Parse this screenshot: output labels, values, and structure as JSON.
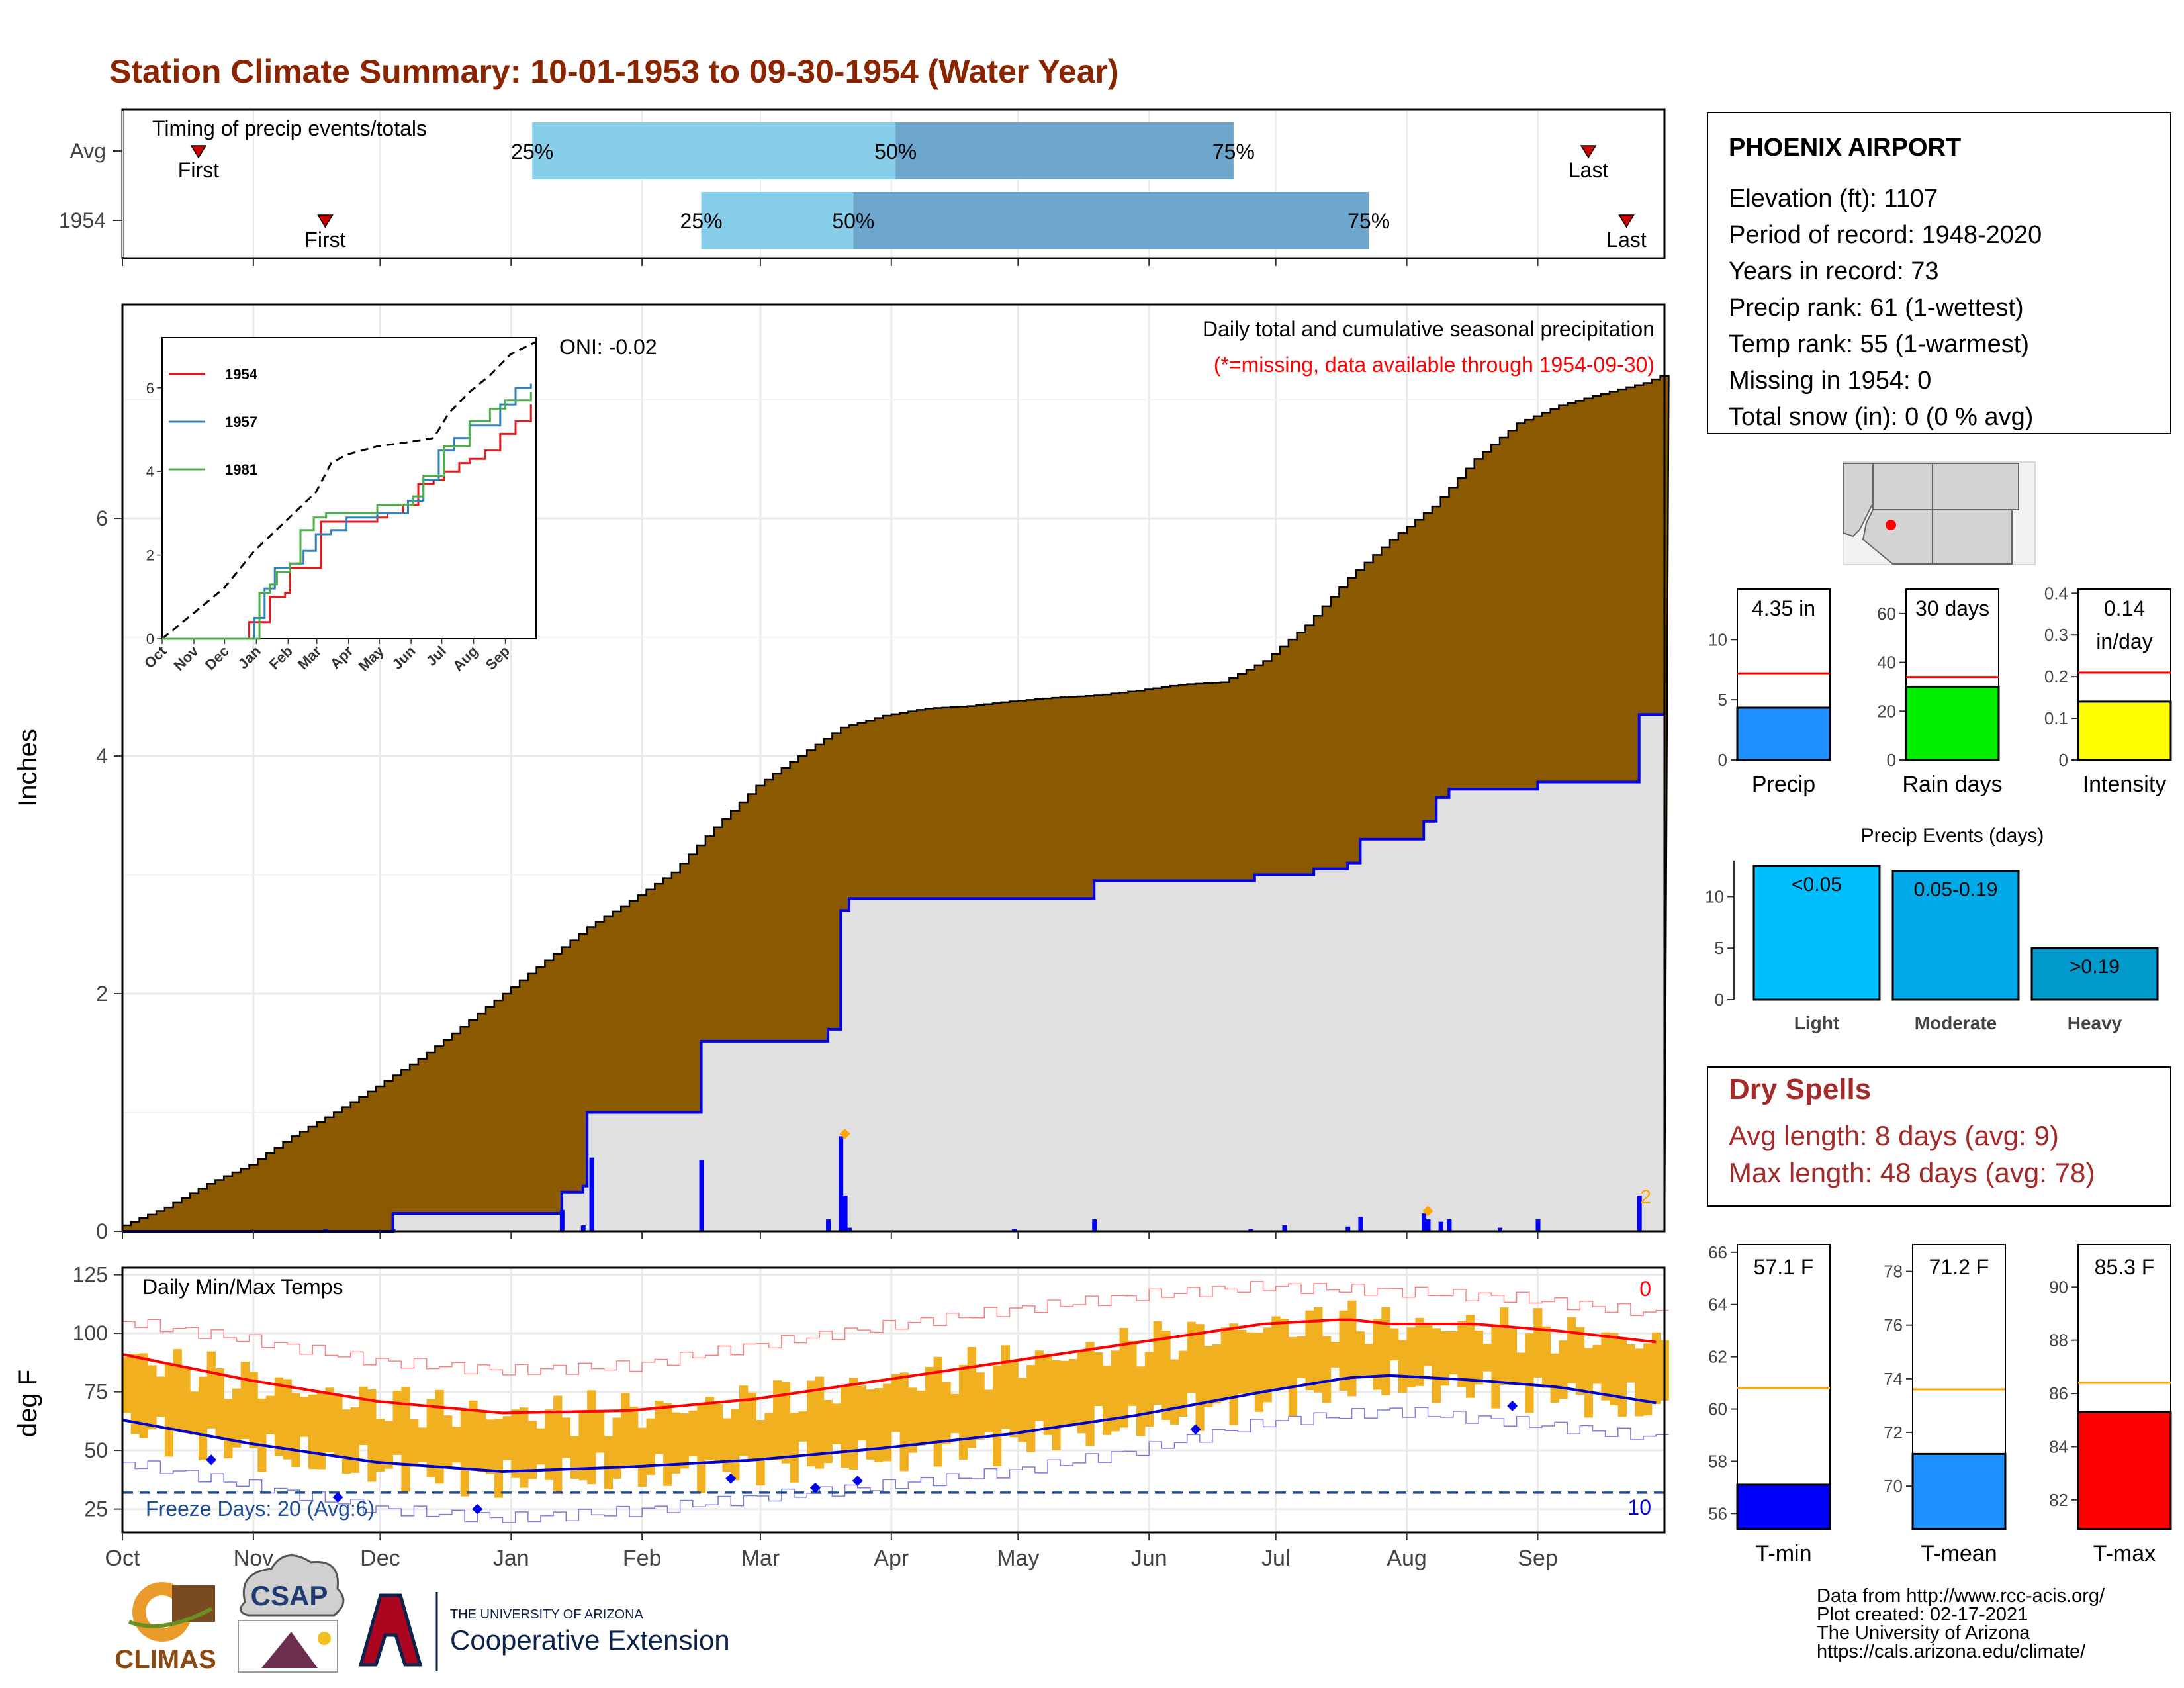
{
  "title": "Station Climate Summary: 10-01-1953 to 09-30-1954 (Water Year)",
  "colors": {
    "title": "#8B2500",
    "precip_fill": "#8B5A00",
    "avg_fill": "#E0E0E0",
    "avg_line": "#0000EE",
    "timing_light": "#87CEEB",
    "timing_dark": "#6CA6CD",
    "tmax": "#FF0000",
    "tmin": "#0000CD",
    "temp_bar": "#F0B020",
    "marker": "#FFA500",
    "dryspell": "#A52A2A"
  },
  "months": [
    "Oct",
    "Nov",
    "Dec",
    "Jan",
    "Feb",
    "Mar",
    "Apr",
    "May",
    "Jun",
    "Jul",
    "Aug",
    "Sep"
  ],
  "timing": {
    "label": "Timing of precip events/totals",
    "rows": [
      {
        "name": "Avg",
        "first_day": 18,
        "q25_day": 97,
        "q50_day": 183,
        "q75_day": 263,
        "last_day": 347,
        "first_label": "First",
        "last_label": "Last",
        "p25": "25%",
        "p50": "50%",
        "p75": "75%"
      },
      {
        "name": "1954",
        "first_day": 48,
        "q25_day": 137,
        "q50_day": 173,
        "q75_day": 295,
        "last_day": 356,
        "first_label": "First",
        "last_label": "Last",
        "p25": "25%",
        "p50": "50%",
        "p75": "75%"
      }
    ]
  },
  "precip": {
    "ylabel": "Inches",
    "yticks": [
      0,
      2,
      4,
      6
    ],
    "ylim": [
      0,
      7.8
    ],
    "oni": "ONI: -0.02",
    "note_title": "Daily total and cumulative seasonal precipitation",
    "note_missing": "(*=missing, data available through 1954-09-30)",
    "corner_value": "2",
    "avg_cumulative": {
      "days": [
        0,
        10,
        20,
        30,
        40,
        50,
        60,
        70,
        80,
        90,
        100,
        110,
        120,
        130,
        140,
        150,
        160,
        170,
        180,
        190,
        200,
        210,
        220,
        230,
        240,
        250,
        260,
        270,
        280,
        290,
        300,
        310,
        320,
        330,
        340,
        350,
        360,
        364
      ],
      "values": [
        0.05,
        0.2,
        0.4,
        0.56,
        0.8,
        1.0,
        1.22,
        1.45,
        1.72,
        2.0,
        2.28,
        2.56,
        2.78,
        3.02,
        3.4,
        3.75,
        4.0,
        4.24,
        4.34,
        4.4,
        4.42,
        4.46,
        4.49,
        4.51,
        4.55,
        4.6,
        4.62,
        4.8,
        5.1,
        5.5,
        5.82,
        6.1,
        6.5,
        6.8,
        6.95,
        7.05,
        7.14,
        7.2
      ]
    },
    "cumulative_1954": [
      [
        0,
        0
      ],
      [
        47,
        0
      ],
      [
        64,
        0.15
      ],
      [
        103,
        0.15
      ],
      [
        104,
        0.33
      ],
      [
        109,
        0.38
      ],
      [
        110,
        1.0
      ],
      [
        136,
        1.0
      ],
      [
        137,
        1.6
      ],
      [
        166,
        1.6
      ],
      [
        167,
        1.7
      ],
      [
        170,
        2.7
      ],
      [
        172,
        2.8
      ],
      [
        229,
        2.8
      ],
      [
        230,
        2.95
      ],
      [
        267,
        2.95
      ],
      [
        268,
        3.0
      ],
      [
        282,
        3.05
      ],
      [
        290,
        3.1
      ],
      [
        293,
        3.3
      ],
      [
        307,
        3.3
      ],
      [
        308,
        3.45
      ],
      [
        311,
        3.65
      ],
      [
        314,
        3.72
      ],
      [
        334,
        3.72
      ],
      [
        335,
        3.78
      ],
      [
        358,
        3.78
      ],
      [
        359,
        4.35
      ],
      [
        364,
        4.35
      ]
    ],
    "daily_1954": [
      [
        48,
        0.02
      ],
      [
        64,
        0.02
      ],
      [
        104,
        0.18
      ],
      [
        109,
        0.05
      ],
      [
        111,
        0.62
      ],
      [
        137,
        0.6
      ],
      [
        167,
        0.1
      ],
      [
        170,
        0.8
      ],
      [
        171,
        0.3
      ],
      [
        172,
        0.03
      ],
      [
        211,
        0.02
      ],
      [
        230,
        0.1
      ],
      [
        267,
        0.02
      ],
      [
        275,
        0.05
      ],
      [
        290,
        0.04
      ],
      [
        293,
        0.12
      ],
      [
        308,
        0.15
      ],
      [
        309,
        0.1
      ],
      [
        312,
        0.08
      ],
      [
        314,
        0.1
      ],
      [
        326,
        0.03
      ],
      [
        335,
        0.1
      ],
      [
        359,
        0.3
      ]
    ],
    "missing_markers": [
      [
        171,
        0.82
      ],
      [
        309,
        0.17
      ]
    ]
  },
  "inset": {
    "yticks": [
      0,
      2,
      4,
      6
    ],
    "ylim": [
      0,
      7.2
    ],
    "xlabels": [
      "Oct",
      "Nov",
      "Dec",
      "Jan",
      "Feb",
      "Mar",
      "Apr",
      "May",
      "Jun",
      "Jul",
      "Aug",
      "Sep"
    ],
    "series": [
      {
        "name": "1954",
        "color": "#E31A1C",
        "points": [
          [
            0,
            0
          ],
          [
            80,
            0
          ],
          [
            85,
            0.4
          ],
          [
            100,
            0.4
          ],
          [
            105,
            1.0
          ],
          [
            120,
            1.1
          ],
          [
            125,
            1.7
          ],
          [
            150,
            1.7
          ],
          [
            155,
            2.8
          ],
          [
            210,
            2.9
          ],
          [
            220,
            3.0
          ],
          [
            235,
            3.2
          ],
          [
            250,
            3.7
          ],
          [
            265,
            3.8
          ],
          [
            275,
            4.0
          ],
          [
            290,
            4.2
          ],
          [
            300,
            4.3
          ],
          [
            315,
            4.5
          ],
          [
            330,
            4.9
          ],
          [
            345,
            5.2
          ],
          [
            360,
            5.6
          ]
        ]
      },
      {
        "name": "1957",
        "color": "#3182BD",
        "points": [
          [
            0,
            0
          ],
          [
            85,
            0
          ],
          [
            90,
            0.5
          ],
          [
            100,
            1.2
          ],
          [
            110,
            1.7
          ],
          [
            125,
            1.8
          ],
          [
            138,
            2.1
          ],
          [
            150,
            2.5
          ],
          [
            165,
            2.6
          ],
          [
            180,
            2.9
          ],
          [
            210,
            3.0
          ],
          [
            240,
            3.3
          ],
          [
            255,
            3.8
          ],
          [
            270,
            4.5
          ],
          [
            285,
            4.8
          ],
          [
            300,
            5.1
          ],
          [
            330,
            5.6
          ],
          [
            345,
            6.0
          ],
          [
            360,
            6.1
          ]
        ]
      },
      {
        "name": "1981",
        "color": "#4DAF4A",
        "points": [
          [
            0,
            0
          ],
          [
            85,
            0
          ],
          [
            95,
            1.1
          ],
          [
            105,
            1.3
          ],
          [
            112,
            1.6
          ],
          [
            125,
            1.8
          ],
          [
            135,
            2.6
          ],
          [
            148,
            2.9
          ],
          [
            160,
            3.0
          ],
          [
            210,
            3.2
          ],
          [
            245,
            3.4
          ],
          [
            255,
            3.9
          ],
          [
            275,
            4.6
          ],
          [
            300,
            5.2
          ],
          [
            320,
            5.5
          ],
          [
            335,
            5.7
          ],
          [
            360,
            5.9
          ]
        ]
      }
    ],
    "normal": {
      "points": [
        [
          0,
          0
        ],
        [
          30,
          0.6
        ],
        [
          60,
          1.2
        ],
        [
          90,
          2.1
        ],
        [
          120,
          2.8
        ],
        [
          150,
          3.5
        ],
        [
          165,
          4.2
        ],
        [
          180,
          4.4
        ],
        [
          210,
          4.6
        ],
        [
          240,
          4.7
        ],
        [
          265,
          4.8
        ],
        [
          280,
          5.4
        ],
        [
          300,
          5.9
        ],
        [
          320,
          6.3
        ],
        [
          340,
          6.8
        ],
        [
          365,
          7.1
        ]
      ]
    }
  },
  "temps": {
    "ylabel": "deg F",
    "label": "Daily Min/Max Temps",
    "yticks": [
      25,
      50,
      75,
      100,
      125
    ],
    "ylim": [
      15,
      128
    ],
    "freeze_line": 32,
    "freeze_label": "Freeze Days: 20 (Avg:6)",
    "top_right": "0",
    "bottom_right": "10",
    "avg_max": [
      [
        0,
        91
      ],
      [
        30,
        80
      ],
      [
        60,
        71
      ],
      [
        90,
        66
      ],
      [
        120,
        67
      ],
      [
        150,
        72
      ],
      [
        180,
        80
      ],
      [
        210,
        88
      ],
      [
        240,
        96
      ],
      [
        270,
        104
      ],
      [
        290,
        106
      ],
      [
        300,
        104
      ],
      [
        320,
        104
      ],
      [
        340,
        101
      ],
      [
        364,
        96
      ]
    ],
    "avg_min": [
      [
        0,
        63
      ],
      [
        30,
        53
      ],
      [
        60,
        45
      ],
      [
        90,
        41
      ],
      [
        120,
        43
      ],
      [
        150,
        46
      ],
      [
        180,
        51
      ],
      [
        210,
        57
      ],
      [
        240,
        65
      ],
      [
        270,
        75
      ],
      [
        290,
        81
      ],
      [
        300,
        82
      ],
      [
        320,
        80
      ],
      [
        340,
        77
      ],
      [
        364,
        70
      ]
    ],
    "rec_max": [
      [
        0,
        105
      ],
      [
        30,
        97
      ],
      [
        60,
        88
      ],
      [
        90,
        84
      ],
      [
        120,
        86
      ],
      [
        150,
        95
      ],
      [
        180,
        103
      ],
      [
        210,
        110
      ],
      [
        240,
        116
      ],
      [
        270,
        120
      ],
      [
        300,
        118
      ],
      [
        330,
        115
      ],
      [
        364,
        108
      ]
    ],
    "rec_min": [
      [
        0,
        45
      ],
      [
        30,
        35
      ],
      [
        60,
        25
      ],
      [
        90,
        21
      ],
      [
        120,
        24
      ],
      [
        150,
        30
      ],
      [
        180,
        35
      ],
      [
        210,
        41
      ],
      [
        240,
        50
      ],
      [
        270,
        62
      ],
      [
        300,
        67
      ],
      [
        330,
        62
      ],
      [
        364,
        55
      ]
    ],
    "record_markers": [
      [
        21,
        46
      ],
      [
        51,
        30
      ],
      [
        84,
        25
      ],
      [
        144,
        38
      ],
      [
        164,
        34
      ],
      [
        174,
        37
      ],
      [
        254,
        59
      ],
      [
        329,
        69
      ]
    ]
  },
  "station": {
    "name": "PHOENIX AIRPORT",
    "lines": [
      "Elevation (ft): 1107",
      "Period of record: 1948-2020",
      "Years in record: 73",
      "Precip rank: 61 (1-wettest)",
      "Temp rank: 55 (1-warmest)",
      "Missing in 1954: 0",
      "Total snow (in): 0 (0 % avg)"
    ]
  },
  "mini_bars": [
    {
      "name": "Precip",
      "value": 4.35,
      "avg": 7.2,
      "ylim": [
        0,
        14.2
      ],
      "yticks": [
        0,
        5,
        10
      ],
      "label": "4.35 in",
      "color": "#1E90FF"
    },
    {
      "name": "Rain days",
      "value": 30,
      "avg": 34,
      "ylim": [
        0,
        70
      ],
      "yticks": [
        0,
        20,
        40,
        60
      ],
      "label": "30 days",
      "color": "#00EE00"
    },
    {
      "name": "Intensity",
      "value": 0.14,
      "avg": 0.21,
      "ylim": [
        0,
        0.41
      ],
      "yticks": [
        0.0,
        0.1,
        0.2,
        0.3,
        0.4
      ],
      "label": "0.14",
      "label2": "in/day",
      "color": "#FFFF00"
    }
  ],
  "precip_events": {
    "title": "Precip Events (days)",
    "yticks": [
      0,
      5,
      10
    ],
    "ylim": [
      0,
      13.5
    ],
    "categories": [
      "Light",
      "Moderate",
      "Heavy"
    ],
    "values": [
      13,
      12.5,
      5
    ],
    "labels": [
      "<0.05",
      "0.05-0.19",
      ">0.19"
    ],
    "colors": [
      "#00BFFF",
      "#00AAE8",
      "#0099CC"
    ]
  },
  "dry_spells": {
    "title": "Dry Spells",
    "avg_line": "Avg length: 8 days (avg: 9)",
    "max_line": "Max length: 48 days (avg: 78)"
  },
  "temp_bars": [
    {
      "name": "T-min",
      "value": 57.1,
      "avg": 60.8,
      "ylim": [
        55.4,
        66.3
      ],
      "yticks": [
        56,
        58,
        60,
        62,
        64,
        66
      ],
      "label": "57.1 F",
      "color": "#0000FF"
    },
    {
      "name": "T-mean",
      "value": 71.2,
      "avg": 73.6,
      "ylim": [
        68.4,
        79.0
      ],
      "yticks": [
        70,
        72,
        74,
        76,
        78
      ],
      "label": "71.2 F",
      "color": "#1E90FF"
    },
    {
      "name": "T-max",
      "value": 85.3,
      "avg": 86.4,
      "ylim": [
        80.9,
        91.6
      ],
      "yticks": [
        82,
        84,
        86,
        88,
        90
      ],
      "label": "85.3 F",
      "color": "#FF0000"
    }
  ],
  "footer": {
    "credits": [
      "Data from http://www.rcc-acis.org/",
      "Plot created: 02-17-2021",
      "The University of Arizona",
      "https://cals.arizona.edu/climate/"
    ],
    "logo_climas": "CLIMAS",
    "logo_csap": "CSAP",
    "logo_ua_small": "THE UNIVERSITY OF ARIZONA",
    "logo_ua_big": "Cooperative Extension"
  }
}
